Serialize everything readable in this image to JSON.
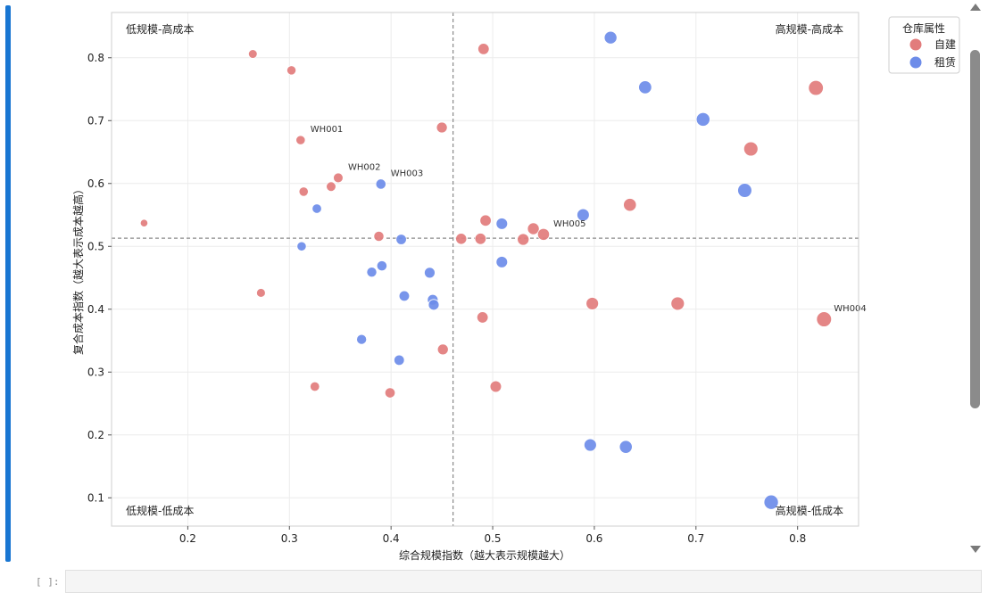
{
  "chart_data": {
    "type": "scatter",
    "xlabel": "综合规模指数（越大表示规模越大）",
    "ylabel": "复合成本指数（越大表示成本越高）",
    "xlim": [
      0.125,
      0.86
    ],
    "ylim": [
      0.055,
      0.872
    ],
    "xticks": [
      0.2,
      0.3,
      0.4,
      0.5,
      0.6,
      0.7,
      0.8
    ],
    "yticks": [
      0.1,
      0.2,
      0.3,
      0.4,
      0.5,
      0.6,
      0.7,
      0.8
    ],
    "grid": true,
    "ref_x": 0.461,
    "ref_y": 0.513,
    "quadrants": {
      "top_left": "低规模-高成本",
      "top_right": "高规模-高成本",
      "bottom_left": "低规模-低成本",
      "bottom_right": "高规模-低成本"
    },
    "legend": {
      "title": "仓库属性",
      "placement": "outside-top-right",
      "entries": [
        {
          "label": "自建",
          "color": "#e27c7c"
        },
        {
          "label": "租赁",
          "color": "#6d8ce9"
        }
      ]
    },
    "series": [
      {
        "name": "自建",
        "color": "#e27c7c",
        "points": [
          {
            "x": 0.157,
            "y": 0.537
          },
          {
            "x": 0.264,
            "y": 0.806
          },
          {
            "x": 0.272,
            "y": 0.426
          },
          {
            "x": 0.302,
            "y": 0.78
          },
          {
            "x": 0.311,
            "y": 0.669,
            "label": "WH001"
          },
          {
            "x": 0.314,
            "y": 0.587
          },
          {
            "x": 0.325,
            "y": 0.277
          },
          {
            "x": 0.341,
            "y": 0.595
          },
          {
            "x": 0.348,
            "y": 0.609,
            "label": "WH002"
          },
          {
            "x": 0.388,
            "y": 0.516
          },
          {
            "x": 0.399,
            "y": 0.267
          },
          {
            "x": 0.45,
            "y": 0.689
          },
          {
            "x": 0.451,
            "y": 0.336
          },
          {
            "x": 0.469,
            "y": 0.512
          },
          {
            "x": 0.488,
            "y": 0.512
          },
          {
            "x": 0.49,
            "y": 0.387
          },
          {
            "x": 0.491,
            "y": 0.814
          },
          {
            "x": 0.493,
            "y": 0.541
          },
          {
            "x": 0.503,
            "y": 0.277
          },
          {
            "x": 0.53,
            "y": 0.511
          },
          {
            "x": 0.54,
            "y": 0.528
          },
          {
            "x": 0.55,
            "y": 0.519,
            "label": "WH005"
          },
          {
            "x": 0.598,
            "y": 0.409
          },
          {
            "x": 0.635,
            "y": 0.566
          },
          {
            "x": 0.682,
            "y": 0.409
          },
          {
            "x": 0.754,
            "y": 0.655
          },
          {
            "x": 0.818,
            "y": 0.752
          },
          {
            "x": 0.826,
            "y": 0.384,
            "label": "WH004"
          }
        ]
      },
      {
        "name": "租赁",
        "color": "#6d8ce9",
        "points": [
          {
            "x": 0.312,
            "y": 0.5
          },
          {
            "x": 0.327,
            "y": 0.56
          },
          {
            "x": 0.371,
            "y": 0.352
          },
          {
            "x": 0.381,
            "y": 0.459
          },
          {
            "x": 0.39,
            "y": 0.599,
            "label": "WH003"
          },
          {
            "x": 0.391,
            "y": 0.469
          },
          {
            "x": 0.408,
            "y": 0.319
          },
          {
            "x": 0.41,
            "y": 0.511
          },
          {
            "x": 0.413,
            "y": 0.421
          },
          {
            "x": 0.438,
            "y": 0.458
          },
          {
            "x": 0.441,
            "y": 0.415
          },
          {
            "x": 0.442,
            "y": 0.407
          },
          {
            "x": 0.509,
            "y": 0.536
          },
          {
            "x": 0.509,
            "y": 0.475
          },
          {
            "x": 0.589,
            "y": 0.55
          },
          {
            "x": 0.596,
            "y": 0.184
          },
          {
            "x": 0.616,
            "y": 0.832
          },
          {
            "x": 0.631,
            "y": 0.181
          },
          {
            "x": 0.65,
            "y": 0.753
          },
          {
            "x": 0.707,
            "y": 0.702
          },
          {
            "x": 0.748,
            "y": 0.589
          },
          {
            "x": 0.774,
            "y": 0.093
          }
        ]
      }
    ]
  },
  "notebook": {
    "input_prompt": "[ ]:"
  }
}
